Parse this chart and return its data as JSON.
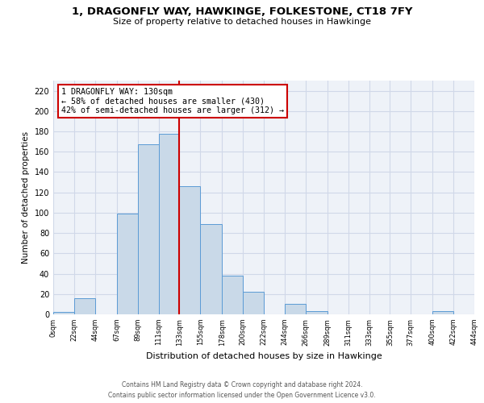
{
  "title": "1, DRAGONFLY WAY, HAWKINGE, FOLKESTONE, CT18 7FY",
  "subtitle": "Size of property relative to detached houses in Hawkinge",
  "bar_color": "#c9d9e8",
  "bar_edge_color": "#5b9bd5",
  "bin_edges": [
    0,
    22,
    44,
    67,
    89,
    111,
    133,
    155,
    178,
    200,
    222,
    244,
    266,
    289,
    311,
    333,
    355,
    377,
    400,
    422,
    444
  ],
  "bar_heights": [
    2,
    16,
    0,
    99,
    167,
    178,
    126,
    89,
    38,
    22,
    0,
    10,
    3,
    0,
    0,
    0,
    0,
    0,
    3,
    0
  ],
  "xlabel": "Distribution of detached houses by size in Hawkinge",
  "ylabel": "Number of detached properties",
  "ylim": [
    0,
    230
  ],
  "yticks": [
    0,
    20,
    40,
    60,
    80,
    100,
    120,
    140,
    160,
    180,
    200,
    220
  ],
  "property_line_x": 133,
  "property_line_color": "#cc0000",
  "annotation_title": "1 DRAGONFLY WAY: 130sqm",
  "annotation_line1": "← 58% of detached houses are smaller (430)",
  "annotation_line2": "42% of semi-detached houses are larger (312) →",
  "footer_line1": "Contains HM Land Registry data © Crown copyright and database right 2024.",
  "footer_line2": "Contains public sector information licensed under the Open Government Licence v3.0.",
  "grid_color": "#d0d8e8",
  "background_color": "#eef2f8",
  "tick_labels": [
    "0sqm",
    "22sqm",
    "44sqm",
    "67sqm",
    "89sqm",
    "111sqm",
    "133sqm",
    "155sqm",
    "178sqm",
    "200sqm",
    "222sqm",
    "244sqm",
    "266sqm",
    "289sqm",
    "311sqm",
    "333sqm",
    "355sqm",
    "377sqm",
    "400sqm",
    "422sqm",
    "444sqm"
  ]
}
